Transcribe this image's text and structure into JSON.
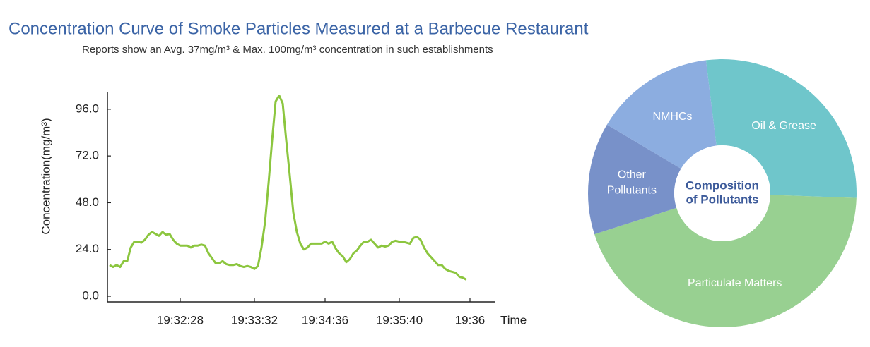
{
  "chart_data": [
    {
      "type": "line",
      "title": "Concentration Curve of Smoke Particles Measured at a Barbecue Restaurant",
      "subtitle": "Reports show an Avg. 37mg/m³ & Max. 100mg/m³ concentration in such establishments",
      "x_label": "Time",
      "y_label": "Concentration(mg/m³)",
      "categories": [
        null,
        null,
        null,
        null,
        null,
        null,
        null,
        null,
        null,
        null,
        null,
        null,
        null,
        null,
        null,
        null,
        null,
        null,
        null,
        null,
        "19:32:28",
        null,
        null,
        null,
        null,
        null,
        null,
        null,
        null,
        null,
        null,
        null,
        null,
        null,
        null,
        null,
        null,
        null,
        null,
        null,
        null,
        "19:33:32",
        null,
        null,
        null,
        null,
        null,
        null,
        null,
        null,
        null,
        null,
        null,
        null,
        null,
        null,
        null,
        null,
        null,
        null,
        null,
        "19:34:36",
        null,
        null,
        null,
        null,
        null,
        null,
        null,
        null,
        null,
        null,
        null,
        null,
        null,
        null,
        null,
        null,
        null,
        null,
        null,
        null,
        "19:35:40",
        null,
        null,
        null,
        null,
        null,
        null,
        null,
        null,
        null,
        null,
        null,
        null,
        null,
        null,
        null,
        null,
        null,
        null,
        null,
        "19:36"
      ],
      "values": [
        16,
        15,
        16,
        15,
        18,
        18,
        25,
        28,
        28,
        27.5,
        29,
        31.5,
        33,
        32,
        31,
        33,
        31.5,
        32,
        29,
        27,
        26,
        26,
        26,
        25,
        26,
        26,
        26.5,
        26,
        22,
        19.5,
        17,
        17,
        18,
        16.5,
        16,
        16,
        16.5,
        15.5,
        15,
        15.5,
        15,
        14,
        15.5,
        25,
        38,
        58,
        80,
        100,
        103,
        99,
        80,
        62,
        43,
        33,
        27,
        24,
        25,
        27,
        27,
        27,
        27,
        28,
        27,
        28,
        24.5,
        22,
        20.5,
        17.5,
        19,
        22,
        23.5,
        26,
        28,
        28,
        29,
        27,
        25,
        26,
        25.5,
        26,
        28,
        28.5,
        28,
        28,
        27.5,
        27,
        30,
        30.5,
        29,
        25,
        22,
        20,
        18,
        16,
        16,
        14,
        13,
        12.5,
        12,
        10,
        9.5,
        8.5,
        null
      ],
      "color": "#8cc63f",
      "ylim": [
        0,
        105
      ],
      "yticks": [
        {
          "value": 0,
          "label": "0.0"
        },
        {
          "value": 24,
          "label": "24.0"
        },
        {
          "value": 48,
          "label": "48.0"
        },
        {
          "value": 72,
          "label": "72.0"
        },
        {
          "value": 96,
          "label": "96.0"
        }
      ]
    },
    {
      "type": "pie",
      "title": "Composition of Pollutants",
      "categories": [
        "Oil & Grease",
        "Particulate Matters",
        "Other Pollutants",
        "NMHCs"
      ],
      "values": [
        27.5,
        44.5,
        13.5,
        14.5
      ],
      "colors": [
        "#6fc6cb",
        "#98d091",
        "#7891c9",
        "#8cade0"
      ],
      "donut": true
    }
  ]
}
